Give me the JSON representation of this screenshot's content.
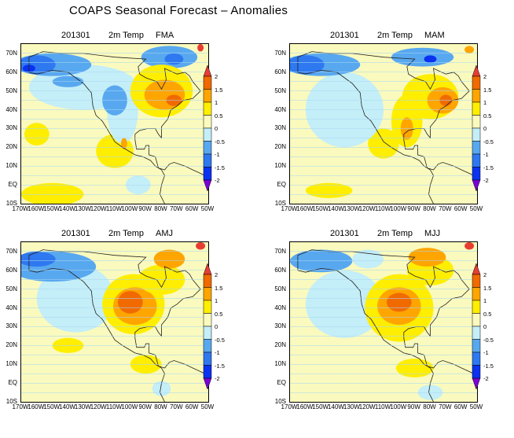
{
  "title": "COAPS Seasonal Forecast – Anomalies",
  "panels": [
    {
      "date": "201301",
      "variable": "2m Temp",
      "season": "FMA"
    },
    {
      "date": "201301",
      "variable": "2m Temp",
      "season": "MAM"
    },
    {
      "date": "201301",
      "variable": "2m Temp",
      "season": "AMJ"
    },
    {
      "date": "201301",
      "variable": "2m Temp",
      "season": "MJJ"
    }
  ],
  "lat_ticks": [
    "70N",
    "60N",
    "50N",
    "40N",
    "30N",
    "20N",
    "10N",
    "EQ",
    "10S"
  ],
  "lat_values": [
    70,
    60,
    50,
    40,
    30,
    20,
    10,
    0,
    -10
  ],
  "lon_ticks": [
    "170W",
    "160W",
    "150W",
    "140W",
    "130W",
    "120W",
    "110W",
    "100W",
    "90W",
    "80W",
    "70W",
    "60W",
    "50W"
  ],
  "lon_values": [
    -170,
    -160,
    -150,
    -140,
    -130,
    -120,
    -110,
    -100,
    -90,
    -80,
    -70,
    -60,
    -50
  ],
  "colorbar": {
    "labels": [
      "2",
      "1.5",
      "1",
      "0.5",
      "0",
      "-0.5",
      "-1",
      "-1.5",
      "-2"
    ],
    "colors": {
      "above_2": "#e83c32",
      "c15_2": "#f06a00",
      "c1_15": "#ffa500",
      "c05_1": "#ffee00",
      "c0_05": "#fafabe",
      "cm05_0": "#c4eef8",
      "cm1_m05": "#58a8f0",
      "cm15_m1": "#2e78f0",
      "cm2_m15": "#0a32f0",
      "below_m2": "#7a00d8"
    }
  }
}
